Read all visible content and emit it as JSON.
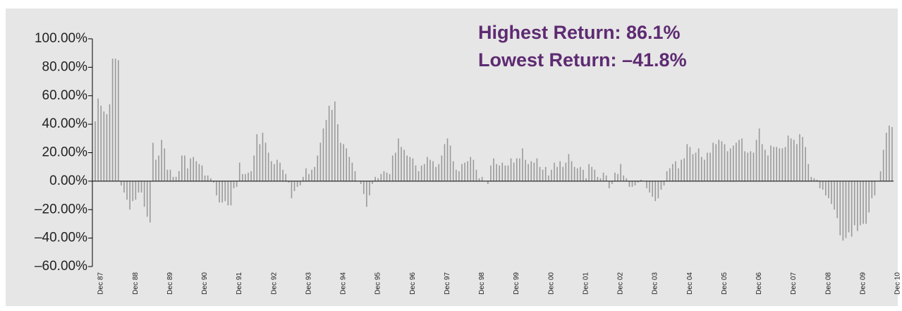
{
  "chart_data": {
    "type": "bar",
    "annotations": [
      "Highest Return: 86.1%",
      "Lowest Return: –41.8%"
    ],
    "color": "#9a9a9a",
    "ylim": [
      -60,
      100
    ],
    "yticks": [
      {
        "value": -60,
        "label": "–60.00%"
      },
      {
        "value": -40,
        "label": "–40.00%"
      },
      {
        "value": -20,
        "label": "–20.00%"
      },
      {
        "value": 0,
        "label": "0.00%"
      },
      {
        "value": 20,
        "label": "20.00%"
      },
      {
        "value": 40,
        "label": "40.00%"
      },
      {
        "value": 60,
        "label": "60.00%"
      },
      {
        "value": 80,
        "label": "80.00%"
      },
      {
        "value": 100,
        "label": "100.00%"
      }
    ],
    "categories": [
      "Dec 87",
      null,
      null,
      null,
      null,
      null,
      null,
      null,
      null,
      null,
      null,
      null,
      "Dec 88",
      null,
      null,
      null,
      null,
      null,
      null,
      null,
      null,
      null,
      null,
      null,
      "Dec 89",
      null,
      null,
      null,
      null,
      null,
      null,
      null,
      null,
      null,
      null,
      null,
      "Dec 90",
      null,
      null,
      null,
      null,
      null,
      null,
      null,
      null,
      null,
      null,
      null,
      "Dec 91",
      null,
      null,
      null,
      null,
      null,
      null,
      null,
      null,
      null,
      null,
      null,
      "Dec 92",
      null,
      null,
      null,
      null,
      null,
      null,
      null,
      null,
      null,
      null,
      null,
      "Dec 93",
      null,
      null,
      null,
      null,
      null,
      null,
      null,
      null,
      null,
      null,
      null,
      "Dec 94",
      null,
      null,
      null,
      null,
      null,
      null,
      null,
      null,
      null,
      null,
      null,
      "Dec 95",
      null,
      null,
      null,
      null,
      null,
      null,
      null,
      null,
      null,
      null,
      null,
      "Dec 96",
      null,
      null,
      null,
      null,
      null,
      null,
      null,
      null,
      null,
      null,
      null,
      "Dec 97",
      null,
      null,
      null,
      null,
      null,
      null,
      null,
      null,
      null,
      null,
      null,
      "Dec 98",
      null,
      null,
      null,
      null,
      null,
      null,
      null,
      null,
      null,
      null,
      null,
      "Dec 99",
      null,
      null,
      null,
      null,
      null,
      null,
      null,
      null,
      null,
      null,
      null,
      "Dec 00",
      null,
      null,
      null,
      null,
      null,
      null,
      null,
      null,
      null,
      null,
      null,
      "Dec 01",
      null,
      null,
      null,
      null,
      null,
      null,
      null,
      null,
      null,
      null,
      null,
      "Dec 02",
      null,
      null,
      null,
      null,
      null,
      null,
      null,
      null,
      null,
      null,
      null,
      "Dec 03",
      null,
      null,
      null,
      null,
      null,
      null,
      null,
      null,
      null,
      null,
      null,
      "Dec 04",
      null,
      null,
      null,
      null,
      null,
      null,
      null,
      null,
      null,
      null,
      null,
      "Dec 05",
      null,
      null,
      null,
      null,
      null,
      null,
      null,
      null,
      null,
      null,
      null,
      "Dec 06",
      null,
      null,
      null,
      null,
      null,
      null,
      null,
      null,
      null,
      null,
      null,
      "Dec 07",
      null,
      null,
      null,
      null,
      null,
      null,
      null,
      null,
      null,
      null,
      null,
      "Dec 08",
      null,
      null,
      null,
      null,
      null,
      null,
      null,
      null,
      null,
      null,
      null,
      "Dec 09",
      null,
      null,
      null,
      null,
      null,
      null,
      null,
      null,
      null,
      null,
      null,
      "Dec 10"
    ],
    "values": [
      42,
      58,
      53,
      49,
      47,
      54,
      86.1,
      86,
      85,
      -3,
      -8,
      -13,
      -20,
      -14,
      -13,
      -8,
      -8,
      -18,
      -25,
      -29,
      27,
      15,
      18,
      29,
      23,
      8,
      8,
      3,
      3,
      7,
      18,
      18,
      9,
      16,
      17,
      14,
      12,
      11,
      4,
      4,
      2,
      -1,
      -10,
      -15,
      -15,
      -14,
      -17,
      -17,
      -5,
      -4,
      13,
      5,
      5,
      6,
      7,
      18,
      33,
      26,
      34,
      27,
      20,
      14,
      12,
      15,
      13,
      8,
      5,
      -1,
      -12,
      -7,
      -4,
      -3,
      3,
      9,
      5,
      8,
      10,
      18,
      27,
      37,
      43,
      53,
      50,
      56,
      40,
      27,
      26,
      23,
      17,
      13,
      7,
      0,
      -2,
      -9,
      -18,
      -10,
      -2,
      3,
      2,
      5,
      7,
      6,
      5,
      18,
      20,
      30,
      24,
      22,
      18,
      17,
      16,
      11,
      7,
      11,
      12,
      17,
      15,
      14,
      10,
      12,
      18,
      26,
      30,
      25,
      14,
      8,
      7,
      12,
      13,
      14,
      17,
      15,
      8,
      2,
      3,
      0,
      -2,
      11,
      16,
      12,
      11,
      13,
      11,
      11,
      16,
      13,
      16,
      16,
      23,
      15,
      12,
      14,
      13,
      16,
      10,
      8,
      10,
      4,
      8,
      13,
      10,
      14,
      10,
      13,
      19,
      14,
      10,
      9,
      10,
      8,
      2,
      12,
      10,
      8,
      3,
      2,
      6,
      4,
      -5,
      -2,
      6,
      5,
      12,
      4,
      2,
      -4,
      -4,
      -3,
      -1,
      1,
      0,
      -5,
      -8,
      -11,
      -14,
      -12,
      -6,
      -3,
      7,
      9,
      12,
      14,
      9,
      15,
      16,
      26,
      24,
      19,
      20,
      23,
      17,
      15,
      20,
      20,
      27,
      26,
      29,
      28,
      26,
      21,
      23,
      25,
      27,
      29,
      30,
      21,
      20,
      21,
      20,
      29,
      37,
      26,
      22,
      18,
      25,
      24,
      24,
      23,
      23,
      24,
      32,
      30,
      29,
      26,
      33,
      31,
      24,
      12,
      3,
      2,
      1,
      -5,
      -6,
      -10,
      -12,
      -16,
      -20,
      -26,
      -38,
      -41.8,
      -40,
      -36,
      -39,
      -31,
      -35,
      -31,
      -30,
      -30,
      -22,
      -12,
      -10,
      0,
      7,
      22,
      34,
      39,
      38
    ]
  }
}
